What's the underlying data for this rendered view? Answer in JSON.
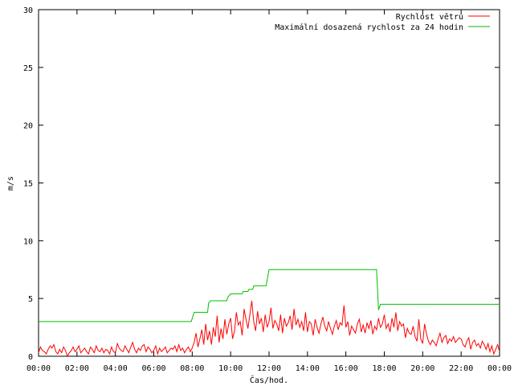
{
  "chart_data": {
    "type": "line",
    "xlabel": "Čas/hod.",
    "ylabel": "m/s",
    "xlim": [
      0,
      24
    ],
    "ylim": [
      0,
      30
    ],
    "x_ticks": [
      0,
      2,
      4,
      6,
      8,
      10,
      12,
      14,
      16,
      18,
      20,
      22,
      24
    ],
    "x_tick_labels": [
      "00:00",
      "02:00",
      "04:00",
      "06:00",
      "08:00",
      "10:00",
      "12:00",
      "14:00",
      "16:00",
      "18:00",
      "20:00",
      "22:00",
      "00:00"
    ],
    "y_ticks": [
      0,
      5,
      10,
      15,
      20,
      25,
      30
    ],
    "y_tick_labels": [
      "0",
      "5",
      "10",
      "15",
      "20",
      "25",
      "30"
    ],
    "grid": false,
    "legend_position": "top-right",
    "colors": {
      "series1": "#ff0000",
      "series2": "#00c000"
    },
    "series": [
      {
        "name": "Rychlost větru",
        "color": "#ff0000",
        "step_hours": 0.1,
        "values": [
          0.3,
          0.8,
          0.5,
          0.4,
          0.2,
          0.6,
          0.9,
          0.7,
          1.0,
          0.4,
          0.2,
          0.6,
          0.3,
          0.8,
          0.5,
          0.0,
          0.3,
          0.5,
          0.8,
          0.4,
          0.6,
          0.9,
          0.3,
          0.5,
          0.7,
          0.4,
          0.2,
          0.8,
          0.6,
          0.3,
          0.9,
          0.5,
          0.4,
          0.7,
          0.3,
          0.6,
          0.5,
          0.2,
          0.8,
          0.4,
          0.3,
          1.1,
          0.7,
          0.5,
          0.4,
          0.9,
          0.6,
          0.3,
          0.8,
          1.2,
          0.6,
          0.3,
          0.7,
          0.5,
          0.9,
          1.0,
          0.4,
          0.8,
          0.6,
          0.3,
          0.5,
          0.9,
          0.2,
          0.7,
          0.4,
          0.6,
          0.8,
          0.3,
          0.5,
          0.7,
          0.6,
          0.9,
          0.4,
          1.0,
          0.5,
          0.7,
          0.3,
          0.6,
          0.8,
          0.4,
          0.7,
          1.2,
          2.0,
          0.8,
          1.5,
          2.3,
          1.0,
          2.8,
          1.4,
          2.2,
          1.0,
          2.5,
          1.7,
          3.5,
          1.2,
          2.4,
          1.5,
          3.2,
          1.9,
          2.8,
          3.3,
          1.5,
          2.2,
          3.8,
          2.7,
          3.0,
          1.8,
          4.1,
          3.2,
          2.4,
          3.6,
          4.8,
          3.0,
          2.2,
          3.9,
          2.8,
          3.3,
          2.1,
          3.6,
          2.5,
          3.0,
          4.2,
          2.4,
          3.1,
          2.8,
          2.2,
          3.6,
          2.0,
          3.3,
          2.6,
          2.9,
          3.5,
          2.3,
          4.1,
          2.7,
          3.2,
          2.5,
          3.0,
          2.2,
          3.8,
          2.1,
          3.0,
          2.8,
          1.8,
          3.2,
          2.5,
          2.0,
          2.8,
          3.4,
          2.6,
          2.2,
          3.0,
          2.4,
          1.9,
          2.6,
          3.1,
          2.3,
          2.9,
          2.7,
          4.4,
          2.5,
          3.0,
          1.8,
          2.6,
          2.3,
          2.0,
          2.8,
          3.2,
          2.1,
          2.7,
          2.0,
          2.9,
          2.4,
          3.1,
          1.9,
          2.6,
          2.3,
          3.3,
          2.5,
          2.8,
          3.6,
          2.4,
          2.8,
          2.1,
          3.3,
          2.5,
          3.8,
          2.2,
          3.0,
          2.6,
          2.8,
          1.6,
          2.4,
          2.0,
          1.9,
          2.6,
          1.7,
          1.3,
          3.2,
          1.5,
          1.1,
          2.8,
          1.9,
          1.3,
          1.0,
          1.4,
          1.2,
          0.9,
          1.5,
          2.0,
          1.2,
          1.6,
          1.8,
          1.1,
          1.5,
          1.3,
          1.7,
          1.2,
          1.4,
          1.6,
          1.5,
          1.0,
          0.8,
          1.3,
          1.6,
          0.6,
          1.2,
          1.4,
          0.9,
          1.1,
          0.7,
          1.3,
          1.0,
          0.6,
          1.1,
          0.4,
          0.9,
          0.2,
          0.6,
          1.0,
          0.4
        ]
      },
      {
        "name": "Maximální dosazená rychlost za 24 hodin",
        "color": "#00c000",
        "points": [
          [
            0.0,
            3.0
          ],
          [
            7.95,
            3.0
          ],
          [
            8.1,
            3.8
          ],
          [
            8.8,
            3.8
          ],
          [
            8.85,
            4.6
          ],
          [
            8.95,
            4.8
          ],
          [
            9.8,
            4.8
          ],
          [
            9.85,
            5.1
          ],
          [
            10.0,
            5.4
          ],
          [
            10.6,
            5.4
          ],
          [
            10.65,
            5.6
          ],
          [
            10.9,
            5.6
          ],
          [
            10.95,
            5.8
          ],
          [
            11.15,
            5.8
          ],
          [
            11.2,
            6.1
          ],
          [
            11.85,
            6.1
          ],
          [
            12.0,
            7.5
          ],
          [
            17.6,
            7.5
          ],
          [
            17.7,
            4.0
          ],
          [
            17.8,
            4.5
          ],
          [
            24.0,
            4.5
          ]
        ]
      }
    ]
  }
}
